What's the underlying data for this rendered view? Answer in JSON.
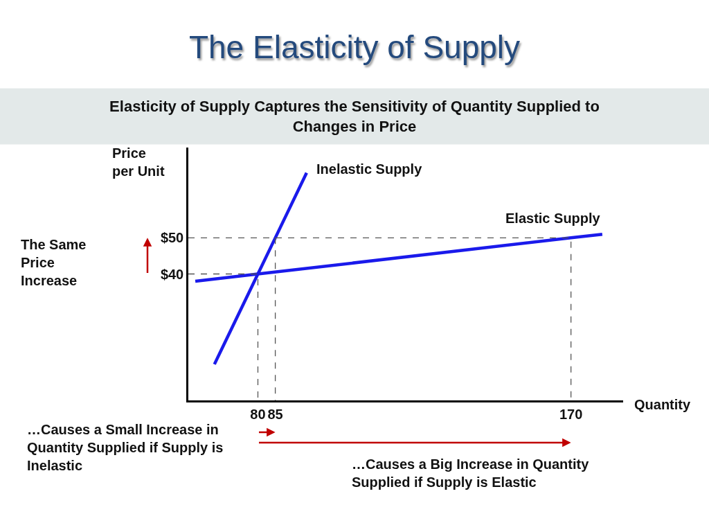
{
  "chart_data": {
    "type": "line",
    "title": "The Elasticity of Supply",
    "subtitle": "Elasticity of Supply Captures the Sensitivity of Quantity Supplied to\nChanges in Price",
    "xlabel": "Quantity",
    "ylabel": "Price\nper Unit",
    "annotations": [
      "The Same\nPrice\nIncrease",
      "…Causes a Small Increase in\nQuantity Supplied if Supply is\nInelastic",
      "…Causes a Big Increase in Quantity\nSupplied if Supply is Elastic"
    ],
    "series": [
      {
        "name": "Inelastic Supply",
        "color": "#1a1aeb",
        "x": [
          67.5,
          80,
          85,
          94
        ],
        "values": [
          15,
          40,
          50,
          68
        ]
      },
      {
        "name": "Elastic Supply",
        "color": "#1a1aeb",
        "x": [
          62,
          80,
          170,
          179
        ],
        "values": [
          38,
          40,
          50,
          51
        ]
      },
      {
        "color": "#555555",
        "line_style": "dashed",
        "x": [
          60,
          80,
          80
        ],
        "values": [
          40,
          40,
          5
        ]
      },
      {
        "color": "#555555",
        "line_style": "dashed",
        "x": [
          60,
          170,
          170
        ],
        "values": [
          50,
          50,
          5
        ]
      },
      {
        "color": "#555555",
        "line_style": "dashed",
        "x": [
          85,
          85
        ],
        "values": [
          50,
          5
        ]
      }
    ],
    "xlim": [
      60,
      185
    ],
    "xticks": [
      80,
      85,
      170
    ],
    "ylim": [
      5,
      75
    ],
    "yticks": [
      {
        "value": 40,
        "label": "$40"
      },
      {
        "value": 50,
        "label": "$50"
      }
    ]
  }
}
